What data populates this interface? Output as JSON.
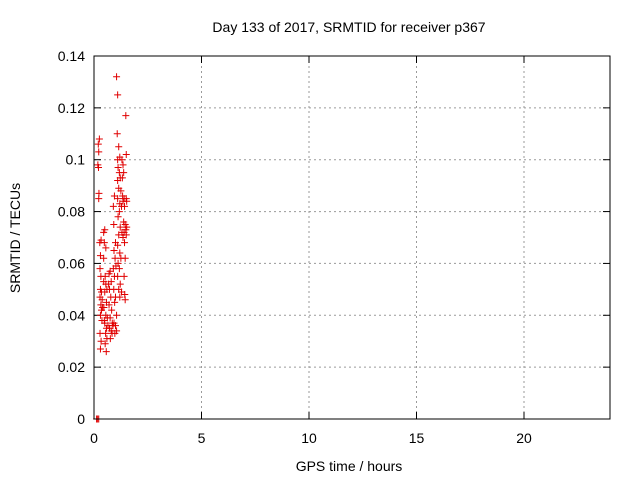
{
  "chart_data": {
    "type": "scatter",
    "title": "Day 133 of 2017, SRMTID for receiver p367",
    "xlabel": "GPS time / hours",
    "ylabel": "SRMTID / TECUs",
    "xlim": [
      0,
      24
    ],
    "ylim": [
      0,
      0.14
    ],
    "x_ticks": [
      0,
      5,
      10,
      15,
      20
    ],
    "x_tick_labels": [
      "0",
      "5",
      "10",
      "15",
      "20"
    ],
    "y_ticks": [
      0,
      0.02,
      0.04,
      0.06,
      0.08,
      0.1,
      0.12,
      0.14
    ],
    "y_tick_labels": [
      "0",
      "0.02",
      "0.04",
      "0.06",
      "0.08",
      "0.1",
      "0.12",
      "0.14"
    ],
    "grid": true,
    "marker": "+",
    "series": [
      {
        "name": "SRMTID",
        "color": "#e00000",
        "points": [
          [
            0.17,
            0.0
          ],
          [
            0.12,
            0.0
          ],
          [
            0.22,
            0.0
          ],
          [
            0.2,
            0.106
          ],
          [
            0.25,
            0.108
          ],
          [
            0.22,
            0.103
          ],
          [
            0.18,
            0.098
          ],
          [
            0.21,
            0.097
          ],
          [
            0.23,
            0.087
          ],
          [
            0.22,
            0.085
          ],
          [
            0.27,
            0.068
          ],
          [
            0.33,
            0.069
          ],
          [
            0.3,
            0.063
          ],
          [
            0.28,
            0.058
          ],
          [
            0.32,
            0.055
          ],
          [
            0.3,
            0.05
          ],
          [
            0.35,
            0.049
          ],
          [
            0.28,
            0.047
          ],
          [
            0.38,
            0.046
          ],
          [
            0.32,
            0.044
          ],
          [
            0.35,
            0.042
          ],
          [
            0.3,
            0.04
          ],
          [
            0.37,
            0.038
          ],
          [
            0.28,
            0.033
          ],
          [
            0.33,
            0.03
          ],
          [
            0.3,
            0.027
          ],
          [
            0.4,
            0.043
          ],
          [
            0.45,
            0.072
          ],
          [
            0.5,
            0.073
          ],
          [
            0.48,
            0.068
          ],
          [
            0.55,
            0.066
          ],
          [
            0.45,
            0.062
          ],
          [
            0.52,
            0.055
          ],
          [
            0.45,
            0.053
          ],
          [
            0.55,
            0.052
          ],
          [
            0.6,
            0.05
          ],
          [
            0.5,
            0.049
          ],
          [
            0.58,
            0.045
          ],
          [
            0.46,
            0.043
          ],
          [
            0.55,
            0.04
          ],
          [
            0.62,
            0.039
          ],
          [
            0.5,
            0.037
          ],
          [
            0.58,
            0.035
          ],
          [
            0.54,
            0.033
          ],
          [
            0.6,
            0.031
          ],
          [
            0.52,
            0.029
          ],
          [
            0.57,
            0.026
          ],
          [
            0.65,
            0.036
          ],
          [
            0.48,
            0.038
          ],
          [
            0.7,
            0.056
          ],
          [
            0.75,
            0.057
          ],
          [
            0.68,
            0.052
          ],
          [
            0.8,
            0.053
          ],
          [
            0.72,
            0.05
          ],
          [
            0.78,
            0.047
          ],
          [
            0.7,
            0.044
          ],
          [
            0.82,
            0.042
          ],
          [
            0.75,
            0.039
          ],
          [
            0.85,
            0.037
          ],
          [
            0.72,
            0.035
          ],
          [
            0.8,
            0.034
          ],
          [
            0.76,
            0.031
          ],
          [
            0.88,
            0.036
          ],
          [
            0.84,
            0.033
          ],
          [
            0.9,
            0.082
          ],
          [
            0.95,
            0.086
          ],
          [
            0.92,
            0.075
          ],
          [
            1.0,
            0.068
          ],
          [
            0.93,
            0.065
          ],
          [
            0.98,
            0.062
          ],
          [
            0.9,
            0.058
          ],
          [
            1.02,
            0.059
          ],
          [
            0.95,
            0.055
          ],
          [
            0.92,
            0.05
          ],
          [
            1.0,
            0.047
          ],
          [
            0.96,
            0.045
          ],
          [
            1.05,
            0.04
          ],
          [
            0.93,
            0.037
          ],
          [
            1.0,
            0.036
          ],
          [
            1.05,
            0.034
          ],
          [
            0.97,
            0.033
          ],
          [
            1.05,
            0.132
          ],
          [
            1.1,
            0.125
          ],
          [
            1.08,
            0.11
          ],
          [
            1.15,
            0.105
          ],
          [
            1.1,
            0.1
          ],
          [
            1.2,
            0.101
          ],
          [
            1.12,
            0.097
          ],
          [
            1.18,
            0.095
          ],
          [
            1.1,
            0.092
          ],
          [
            1.22,
            0.093
          ],
          [
            1.15,
            0.089
          ],
          [
            1.25,
            0.088
          ],
          [
            1.1,
            0.085
          ],
          [
            1.2,
            0.083
          ],
          [
            1.18,
            0.08
          ],
          [
            1.28,
            0.082
          ],
          [
            1.12,
            0.078
          ],
          [
            1.22,
            0.074
          ],
          [
            1.15,
            0.071
          ],
          [
            1.3,
            0.072
          ],
          [
            1.1,
            0.067
          ],
          [
            1.2,
            0.064
          ],
          [
            1.25,
            0.062
          ],
          [
            1.12,
            0.06
          ],
          [
            1.18,
            0.058
          ],
          [
            1.1,
            0.055
          ],
          [
            1.22,
            0.052
          ],
          [
            1.15,
            0.05
          ],
          [
            1.28,
            0.049
          ],
          [
            1.2,
            0.047
          ],
          [
            1.3,
            0.1
          ],
          [
            1.35,
            0.098
          ],
          [
            1.32,
            0.093
          ],
          [
            1.38,
            0.095
          ],
          [
            1.4,
            0.085
          ],
          [
            1.35,
            0.084
          ],
          [
            1.42,
            0.082
          ],
          [
            1.33,
            0.086
          ],
          [
            1.38,
            0.076
          ],
          [
            1.45,
            0.075
          ],
          [
            1.4,
            0.072
          ],
          [
            1.48,
            0.073
          ],
          [
            1.35,
            0.07
          ],
          [
            1.42,
            0.068
          ],
          [
            1.45,
            0.062
          ],
          [
            1.4,
            0.055
          ],
          [
            1.43,
            0.048
          ],
          [
            1.45,
            0.046
          ],
          [
            1.48,
            0.117
          ],
          [
            1.5,
            0.102
          ],
          [
            1.5,
            0.085
          ],
          [
            1.52,
            0.084
          ],
          [
            1.5,
            0.071
          ],
          [
            1.52,
            0.074
          ]
        ]
      }
    ]
  }
}
